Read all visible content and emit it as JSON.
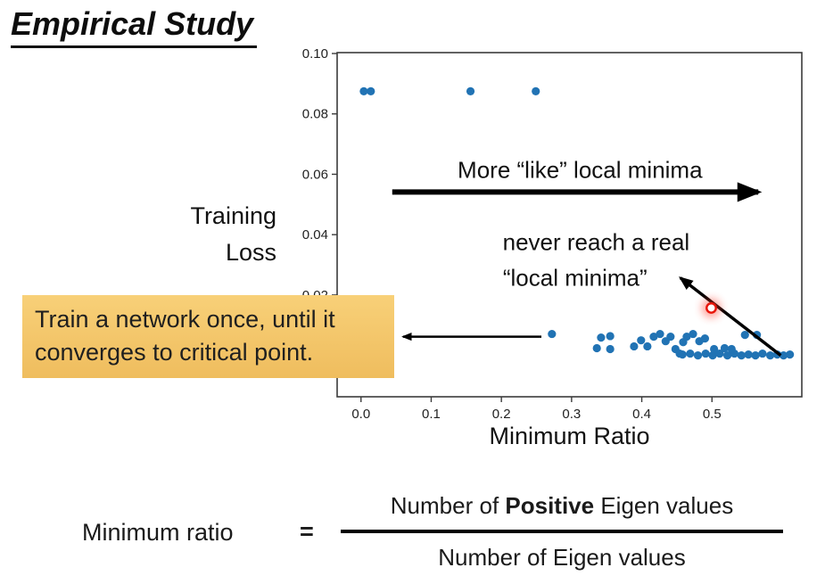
{
  "slide": {
    "title": "Empirical Study"
  },
  "colors": {
    "dot": "#2173b4",
    "highlight": "#e81408",
    "highlight_glow": "#ff3b2a",
    "arrow": "#000000",
    "axis": "#3b3b3b",
    "text": "#222222",
    "callout_bg": "#f6c96e"
  },
  "callout": {
    "text": "Train a network once, until it converges to critical point."
  },
  "formula": {
    "lhs": "Minimum ratio",
    "equals": "=",
    "numerator_prefix": "Number of ",
    "numerator_bold": "Positive",
    "numerator_suffix": " Eigen values",
    "denominator": "Number of Eigen values"
  },
  "chart_data": {
    "type": "scatter",
    "title": "",
    "xlabel": "Minimum Ratio",
    "ylabel": "Training Loss",
    "xlim": [
      -0.034,
      0.628
    ],
    "ylim": [
      -0.0137,
      0.1003
    ],
    "xticks": [
      0.0,
      0.1,
      0.2,
      0.3,
      0.4,
      0.5
    ],
    "yticks": [
      0.02,
      0.04,
      0.06,
      0.08,
      0.1
    ],
    "grid": false,
    "legend": false,
    "points": [
      [
        0.004,
        0.0875
      ],
      [
        0.014,
        0.0875
      ],
      [
        0.156,
        0.0875
      ],
      [
        0.249,
        0.0875
      ],
      [
        0.272,
        0.0071
      ],
      [
        0.336,
        0.0024
      ],
      [
        0.342,
        0.0059
      ],
      [
        0.355,
        0.0064
      ],
      [
        0.355,
        0.0021
      ],
      [
        0.389,
        0.003
      ],
      [
        0.399,
        0.005
      ],
      [
        0.408,
        0.003
      ],
      [
        0.417,
        0.0062
      ],
      [
        0.426,
        0.0071
      ],
      [
        0.434,
        0.0047
      ],
      [
        0.441,
        0.0062
      ],
      [
        0.448,
        0.0021
      ],
      [
        0.454,
        0.0006
      ],
      [
        0.459,
        0.0044
      ],
      [
        0.464,
        0.0062
      ],
      [
        0.473,
        0.0071
      ],
      [
        0.482,
        0.0047
      ],
      [
        0.49,
        0.0056
      ],
      [
        0.458,
        0.0003
      ],
      [
        0.469,
        0.0006
      ],
      [
        0.48,
        0.0
      ],
      [
        0.491,
        0.0006
      ],
      [
        0.501,
        0.0
      ],
      [
        0.511,
        0.0006
      ],
      [
        0.522,
        0.0
      ],
      [
        0.532,
        0.0006
      ],
      [
        0.542,
        0.0
      ],
      [
        0.552,
        0.0003
      ],
      [
        0.562,
        0.0
      ],
      [
        0.572,
        0.0006
      ],
      [
        0.583,
        0.0
      ],
      [
        0.593,
        0.0003
      ],
      [
        0.602,
        0.0
      ],
      [
        0.611,
        0.0003
      ],
      [
        0.503,
        0.0021
      ],
      [
        0.518,
        0.0024
      ],
      [
        0.528,
        0.0021
      ],
      [
        0.547,
        0.0068
      ],
      [
        0.564,
        0.0068
      ]
    ],
    "highlight": {
      "x": 0.499,
      "y": 0.0157
    },
    "arrows": [
      {
        "x1": 0.0445,
        "y1": 0.0541,
        "x2": 0.566,
        "y2": 0.0541,
        "width": 6
      },
      {
        "x1": 0.598,
        "y1": 0.0,
        "x2": 0.455,
        "y2": 0.0257,
        "width": 3.5
      },
      {
        "x1": 0.257,
        "y1": 0.0062,
        "x2": 0.0598,
        "y2": 0.0062,
        "width": 2.5
      }
    ],
    "annotations": [
      {
        "text": "More “like” local minima",
        "x": 0.312,
        "y": 0.0615,
        "size": 26
      },
      {
        "text": "never reach a real",
        "x": 0.335,
        "y": 0.0375,
        "size": 26
      },
      {
        "text": "“local minima”",
        "x": 0.305,
        "y": 0.0257,
        "size": 26
      }
    ]
  }
}
